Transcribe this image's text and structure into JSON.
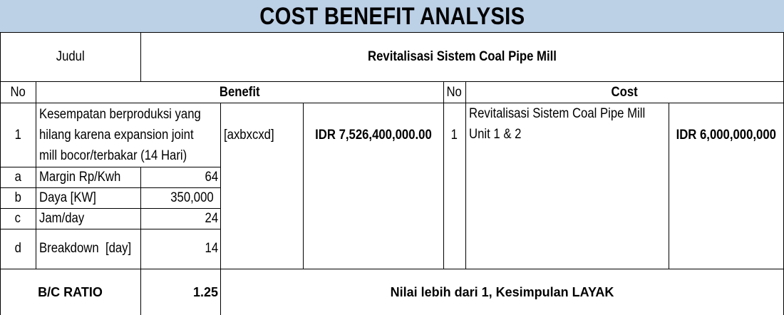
{
  "title": "COST BENEFIT ANALYSIS",
  "judul_label": "Judul",
  "judul_value": "Revitalisasi Sistem Coal Pipe Mill",
  "header": {
    "no": "No",
    "benefit": "Benefit",
    "no2": "No",
    "cost": "Cost"
  },
  "benefit": {
    "no": "1",
    "description_lines": [
      "Kesempatan berproduksi yang",
      "hilang karena expansion joint",
      "mill bocor/terbakar (14 Hari)"
    ],
    "formula": "[axbxcxd]",
    "amount": "IDR 7,526,400,000.00",
    "items": [
      {
        "no": "a",
        "label": "Margin Rp/Kwh",
        "value": "64"
      },
      {
        "no": "b",
        "label": "Daya [KW]",
        "value": "350,000"
      },
      {
        "no": "c",
        "label": "Jam/day",
        "value": "24"
      },
      {
        "no": "d",
        "label": "Breakdown  [day]",
        "value": "14"
      }
    ]
  },
  "cost": {
    "no": "1",
    "description_lines": [
      "Revitalisasi Sistem Coal Pipe Mill",
      "Unit 1 & 2"
    ],
    "amount": "IDR 6,000,000,000"
  },
  "ratio": {
    "label": "B/C RATIO",
    "value": "1.25",
    "conclusion": "Nilai lebih dari 1, Kesimpulan LAYAK"
  }
}
